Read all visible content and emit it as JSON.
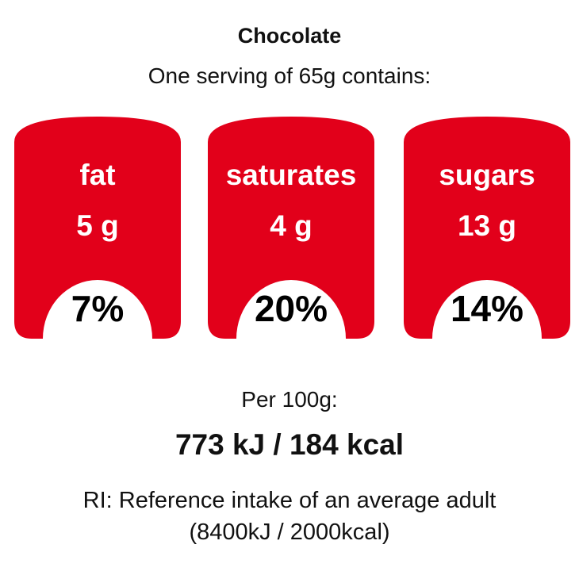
{
  "title": "Chocolate",
  "subtitle": "One serving of 65g contains:",
  "colors": {
    "badge": "#e2001a",
    "text": "#111111",
    "background": "#ffffff"
  },
  "nutrients": [
    {
      "name": "fat",
      "amount": "5 g",
      "percent": "7%"
    },
    {
      "name": "saturates",
      "amount": "4 g",
      "percent": "20%"
    },
    {
      "name": "sugars",
      "amount": "13 g",
      "percent": "14%"
    }
  ],
  "per_100g_label": "Per 100g:",
  "energy": "773 kJ / 184 kcal",
  "ri_note": "RI: Reference intake of an average adult",
  "ri_values": "(8400kJ / 2000kcal)"
}
